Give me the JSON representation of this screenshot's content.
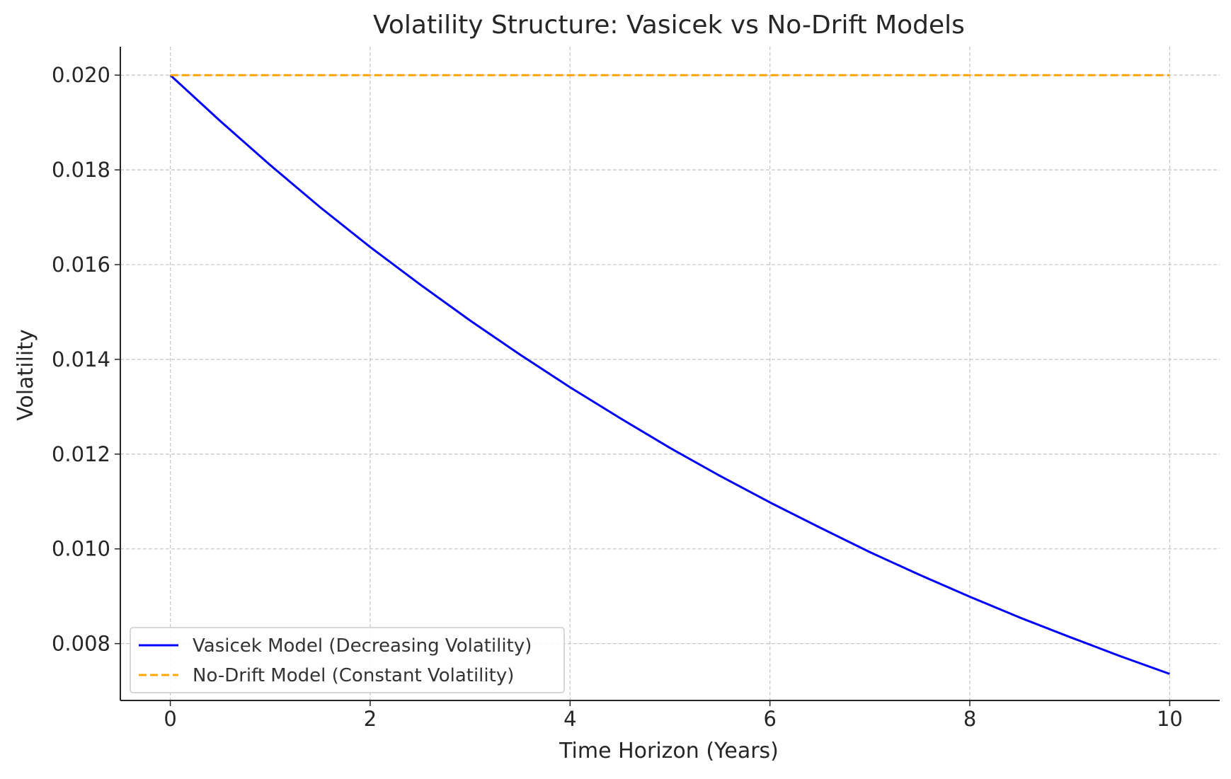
{
  "chart_data": {
    "type": "line",
    "title": "Volatility Structure: Vasicek vs No-Drift Models",
    "xlabel": "Time Horizon (Years)",
    "ylabel": "Volatility",
    "xlim": [
      -0.5,
      10.5
    ],
    "ylim": [
      0.0068,
      0.0206
    ],
    "x_ticks": [
      0,
      2,
      4,
      6,
      8,
      10
    ],
    "x_tick_labels": [
      "0",
      "2",
      "4",
      "6",
      "8",
      "10"
    ],
    "y_ticks": [
      0.008,
      0.01,
      0.012,
      0.014,
      0.016,
      0.018,
      0.02
    ],
    "y_tick_labels": [
      "0.008",
      "0.010",
      "0.012",
      "0.014",
      "0.016",
      "0.018",
      "0.020"
    ],
    "grid": true,
    "legend_position": "lower-left",
    "x": [
      0,
      0.5,
      1,
      1.5,
      2,
      2.5,
      3,
      3.5,
      4,
      4.5,
      5,
      5.5,
      6,
      6.5,
      7,
      7.5,
      8,
      8.5,
      9,
      9.5,
      10
    ],
    "series": [
      {
        "name": "Vasicek Model (Decreasing Volatility)",
        "color": "#0000ff",
        "style": "solid",
        "values": [
          0.02,
          0.01903,
          0.0181,
          0.01721,
          0.01637,
          0.01558,
          0.01482,
          0.0141,
          0.01341,
          0.01276,
          0.01213,
          0.01154,
          0.01098,
          0.01045,
          0.00993,
          0.00945,
          0.00899,
          0.00855,
          0.00814,
          0.00774,
          0.00736
        ]
      },
      {
        "name": "No-Drift Model (Constant Volatility)",
        "color": "#ffa500",
        "style": "dashed",
        "values": [
          0.02,
          0.02,
          0.02,
          0.02,
          0.02,
          0.02,
          0.02,
          0.02,
          0.02,
          0.02,
          0.02,
          0.02,
          0.02,
          0.02,
          0.02,
          0.02,
          0.02,
          0.02,
          0.02,
          0.02,
          0.02
        ]
      }
    ]
  }
}
